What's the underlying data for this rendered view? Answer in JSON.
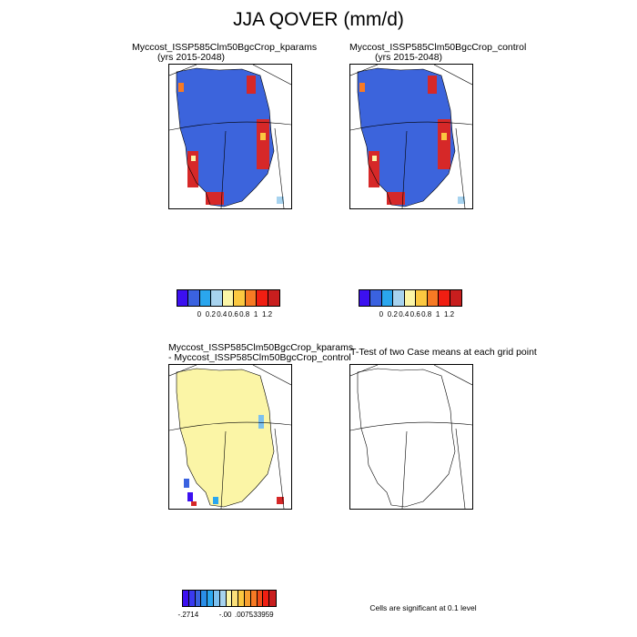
{
  "title": "JJA QOVER (mm/d)",
  "panels": [
    {
      "line1": "Myccost_ISSP585Clm50BgcCrop_kparams",
      "line2": "(yrs 2015-2048)"
    },
    {
      "line1": "Myccost_ISSP585Clm50BgcCrop_control",
      "line2": "(yrs 2015-2048)"
    },
    {
      "line1": "Myccost_ISSP585Clm50BgcCrop_kparams",
      "line2": "- Myccost_ISSP585Clm50BgcCrop_control"
    },
    {
      "line1": "T-Test of two Case means at each grid point"
    }
  ],
  "colorbar_top": {
    "colors": [
      "#3c10f0",
      "#3a62e0",
      "#2aa6ee",
      "#a7d3ef",
      "#fbf5a6",
      "#fbc840",
      "#f77a24",
      "#f01e12",
      "#c81e1e"
    ],
    "labels": [
      "0",
      "0.2",
      "0.4",
      "0.6",
      "0.8",
      "1",
      "1.2"
    ]
  },
  "colorbar_diff": {
    "colors": [
      "#3c10f0",
      "#3a3af0",
      "#3a62e0",
      "#2a8ee8",
      "#2aa6ee",
      "#7cc0ee",
      "#a7d3ef",
      "#fbf5a6",
      "#fbe07a",
      "#fbc840",
      "#f7a030",
      "#f77a24",
      "#f04c18",
      "#f01e12",
      "#c81e1e"
    ],
    "labels": [
      "-.2714",
      "-.00",
      ".0075",
      ".33959"
    ]
  },
  "significance_note": "Cells are significant at 0.1 level"
}
